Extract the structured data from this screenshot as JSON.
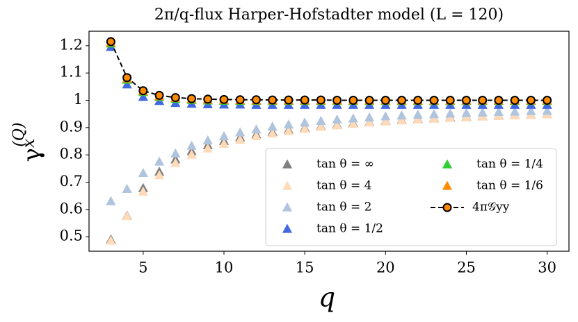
{
  "chart_data": {
    "type": "scatter",
    "title": "2π/q-flux Harper-Hofstadter model (L = 120)",
    "xlabel": "q",
    "ylabel": {
      "base": "γ",
      "sub": "x",
      "sup": "(Q)"
    },
    "x": [
      3,
      4,
      5,
      6,
      7,
      8,
      9,
      10,
      11,
      12,
      13,
      14,
      15,
      16,
      17,
      18,
      19,
      20,
      21,
      22,
      23,
      24,
      25,
      26,
      27,
      28,
      29,
      30
    ],
    "xlim": [
      1.65,
      31.35
    ],
    "xticks": [
      5,
      10,
      15,
      20,
      25,
      30
    ],
    "ylim": [
      0.447,
      1.253
    ],
    "yticks": [
      0.5,
      0.6,
      0.7,
      0.8,
      0.9,
      1.0,
      1.1,
      1.2
    ],
    "legend": "lower right",
    "series": [
      {
        "name": "tan θ = ∞",
        "color": "#808080",
        "marker": "triangle",
        "values": [
          0.49,
          0.577,
          0.678,
          0.738,
          0.783,
          0.813,
          0.835,
          0.851,
          0.864,
          0.875,
          0.884,
          0.892,
          0.899,
          0.905,
          0.911,
          0.916,
          0.92,
          0.924,
          0.928,
          0.931,
          0.934,
          0.937,
          0.939,
          0.941,
          0.943,
          0.945,
          0.947,
          0.949
        ]
      },
      {
        "name": "tan θ = 4",
        "color": "#ffdab9",
        "marker": "triangle",
        "values": [
          0.485,
          0.575,
          0.665,
          0.725,
          0.77,
          0.8,
          0.823,
          0.84,
          0.855,
          0.868,
          0.878,
          0.887,
          0.895,
          0.902,
          0.908,
          0.913,
          0.918,
          0.922,
          0.926,
          0.929,
          0.932,
          0.935,
          0.937,
          0.94,
          0.942,
          0.944,
          0.946,
          0.948
        ]
      },
      {
        "name": "tan θ = 2",
        "color": "#b0c4de",
        "marker": "triangle",
        "values": [
          0.63,
          0.675,
          0.733,
          0.775,
          0.805,
          0.833,
          0.853,
          0.868,
          0.882,
          0.893,
          0.903,
          0.911,
          0.918,
          0.924,
          0.929,
          0.933,
          0.937,
          0.941,
          0.944,
          0.947,
          0.949,
          0.951,
          0.953,
          0.955,
          0.957,
          0.958,
          0.96,
          0.961
        ]
      },
      {
        "name": "tan θ = 1/2",
        "color": "#4169e1",
        "marker": "triangle",
        "values": [
          1.195,
          1.058,
          1.012,
          0.997,
          0.99,
          0.987,
          0.985,
          0.984,
          0.984,
          0.983,
          0.983,
          0.983,
          0.983,
          0.983,
          0.983,
          0.983,
          0.983,
          0.983,
          0.983,
          0.983,
          0.983,
          0.983,
          0.983,
          0.983,
          0.983,
          0.983,
          0.983,
          0.983
        ]
      },
      {
        "name": "tan θ = 1/4",
        "color": "#32cd32",
        "marker": "triangle",
        "values": [
          1.208,
          1.075,
          1.03,
          1.012,
          1.005,
          1.001,
          0.999,
          0.998,
          0.997,
          0.997,
          0.997,
          0.997,
          0.997,
          0.997,
          0.997,
          0.997,
          0.997,
          0.997,
          0.997,
          0.997,
          0.997,
          0.997,
          0.997,
          0.997,
          0.997,
          0.997,
          0.997,
          0.997
        ]
      },
      {
        "name": "tan θ = 1/6",
        "color": "#ff8c00",
        "marker": "triangle",
        "values": [
          1.212,
          1.079,
          1.033,
          1.015,
          1.008,
          1.004,
          1.002,
          1.001,
          1.0,
          0.999,
          0.999,
          0.999,
          0.999,
          0.999,
          0.999,
          0.999,
          0.999,
          0.999,
          0.999,
          0.999,
          0.999,
          0.999,
          0.999,
          0.999,
          0.999,
          0.999,
          0.999,
          0.999
        ]
      },
      {
        "name": "4π𝒢yy",
        "color": "#ff8c00",
        "marker": "circle",
        "linestyle": "dashed",
        "values": [
          1.215,
          1.083,
          1.035,
          1.018,
          1.01,
          1.006,
          1.004,
          1.003,
          1.002,
          1.002,
          1.001,
          1.001,
          1.001,
          1.001,
          1.0,
          1.0,
          1.0,
          1.0,
          1.0,
          1.0,
          1.0,
          1.0,
          1.0,
          1.0,
          1.0,
          1.0,
          1.0,
          1.0
        ]
      }
    ]
  }
}
